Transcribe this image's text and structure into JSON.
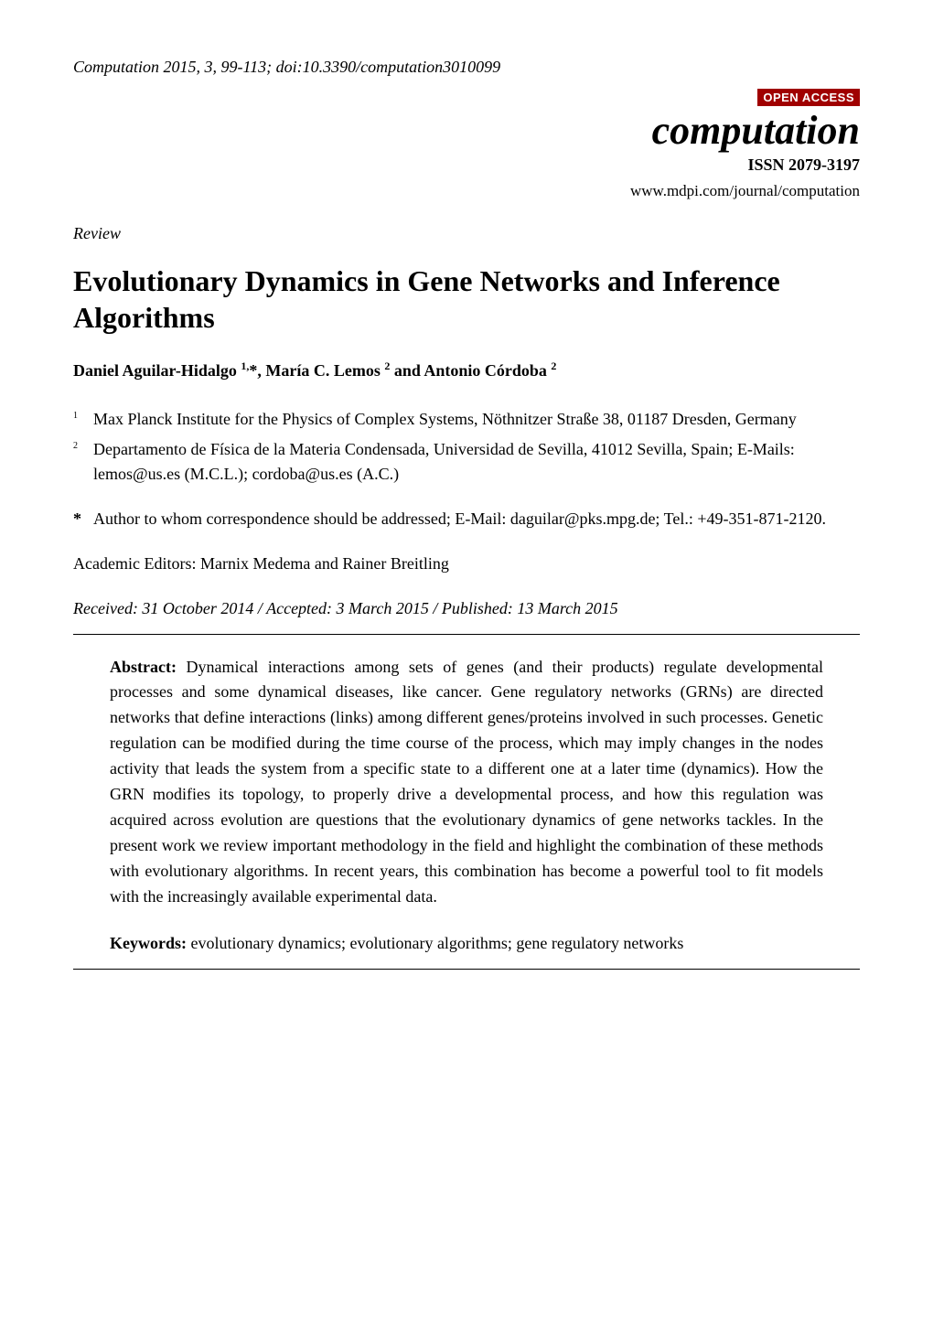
{
  "header": {
    "citation": "Computation 2015, 3, 99-113; doi:10.3390/computation3010099",
    "open_access": "OPEN ACCESS",
    "journal_title": "computation",
    "issn": "ISSN 2079-3197",
    "url": "www.mdpi.com/journal/computation"
  },
  "article_type": "Review",
  "title": "Evolutionary Dynamics in Gene Networks and Inference Algorithms",
  "authors_html": "Daniel Aguilar-Hidalgo <sup>1,</sup>*, María C. Lemos <sup>2</sup> and Antonio Córdoba <sup>2</sup>",
  "authors": {
    "a1_name": "Daniel Aguilar-Hidalgo ",
    "a1_sup": "1,",
    "a1_star": "*",
    "sep1": ", ",
    "a2_name": "María C. Lemos ",
    "a2_sup": "2",
    "sep2": " and ",
    "a3_name": "Antonio Córdoba ",
    "a3_sup": "2"
  },
  "affiliations": [
    {
      "marker": "1",
      "text": "Max Planck Institute for the Physics of Complex Systems, Nöthnitzer Straße 38, 01187 Dresden, Germany"
    },
    {
      "marker": "2",
      "text": "Departamento de Física de la Materia Condensada, Universidad de Sevilla, 41012 Sevilla, Spain; E-Mails: lemos@us.es (M.C.L.); cordoba@us.es (A.C.)"
    }
  ],
  "corresponding": {
    "marker": "*",
    "text": "Author to whom correspondence should be addressed; E-Mail: daguilar@pks.mpg.de; Tel.: +49-351-871-2120."
  },
  "editors": "Academic Editors: Marnix Medema and Rainer Breitling",
  "dates": "Received: 31 October 2014 / Accepted: 3 March 2015 / Published: 13 March 2015",
  "abstract": {
    "label": "Abstract:",
    "text": " Dynamical interactions among sets of genes (and their products) regulate developmental processes and some dynamical diseases, like cancer. Gene regulatory networks (GRNs) are directed networks that define interactions (links) among different genes/proteins involved in such processes. Genetic regulation can be modified during the time course of the process, which may imply changes in the nodes activity that leads the system from a specific state to a different one at a later time (dynamics). How the GRN modifies its topology, to properly drive a developmental process, and how this regulation was acquired across evolution are questions that the evolutionary dynamics of gene networks tackles. In the present work we review important methodology in the field and highlight the combination of these methods with evolutionary algorithms. In recent years, this combination has become a powerful tool to fit models with the increasingly available experimental data."
  },
  "keywords": {
    "label": "Keywords:",
    "text": " evolutionary dynamics; evolutionary algorithms; gene regulatory networks"
  },
  "colors": {
    "open_access_bg": "#a00000",
    "open_access_fg": "#ffffff",
    "text": "#000000",
    "background": "#ffffff",
    "rule": "#000000"
  },
  "typography": {
    "body_font": "Times New Roman",
    "body_size_pt": 12,
    "title_size_pt": 22,
    "journal_title_size_pt": 30
  }
}
